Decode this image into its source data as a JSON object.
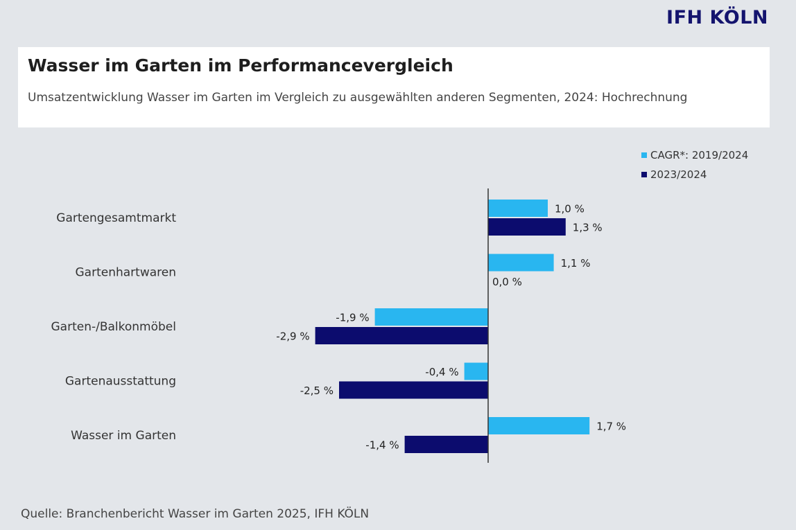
{
  "logo": "IFH KÖLN",
  "title": "Wasser im Garten im Performancevergleich",
  "subtitle": "Umsatzentwicklung Wasser im Garten im Vergleich zu ausgewählten anderen Segmenten, 2024: Hochrechnung",
  "source": "Quelle: Branchenbericht Wasser im Garten 2025, IFH KÖLN",
  "colors": {
    "series1": "#29b6f0",
    "series2": "#0c0c6e",
    "axis": "#333333",
    "background": "#e3e6ea"
  },
  "chart_data": {
    "type": "bar",
    "orientation": "horizontal",
    "categories": [
      "Gartengesamtmarkt",
      "Gartenhartwaren",
      "Garten-/Balkonmöbel",
      "Gartenausstattung",
      "Wasser im Garten"
    ],
    "series": [
      {
        "name": "CAGR*: 2019/2024",
        "values": [
          1.0,
          1.1,
          -1.9,
          -0.4,
          1.7
        ],
        "labels": [
          "1,0 %",
          "1,1 %",
          "-1,9 %",
          "-0,4 %",
          "1,7 %"
        ]
      },
      {
        "name": "2023/2024",
        "values": [
          1.3,
          0.0,
          -2.9,
          -2.5,
          -1.4
        ],
        "labels": [
          "1,3 %",
          "0,0 %",
          "-2,9 %",
          "-2,5 %",
          "-1,4 %"
        ]
      }
    ],
    "xlim": [
      -2.9,
      1.7
    ],
    "legend_position": "top-right",
    "grid": false
  }
}
